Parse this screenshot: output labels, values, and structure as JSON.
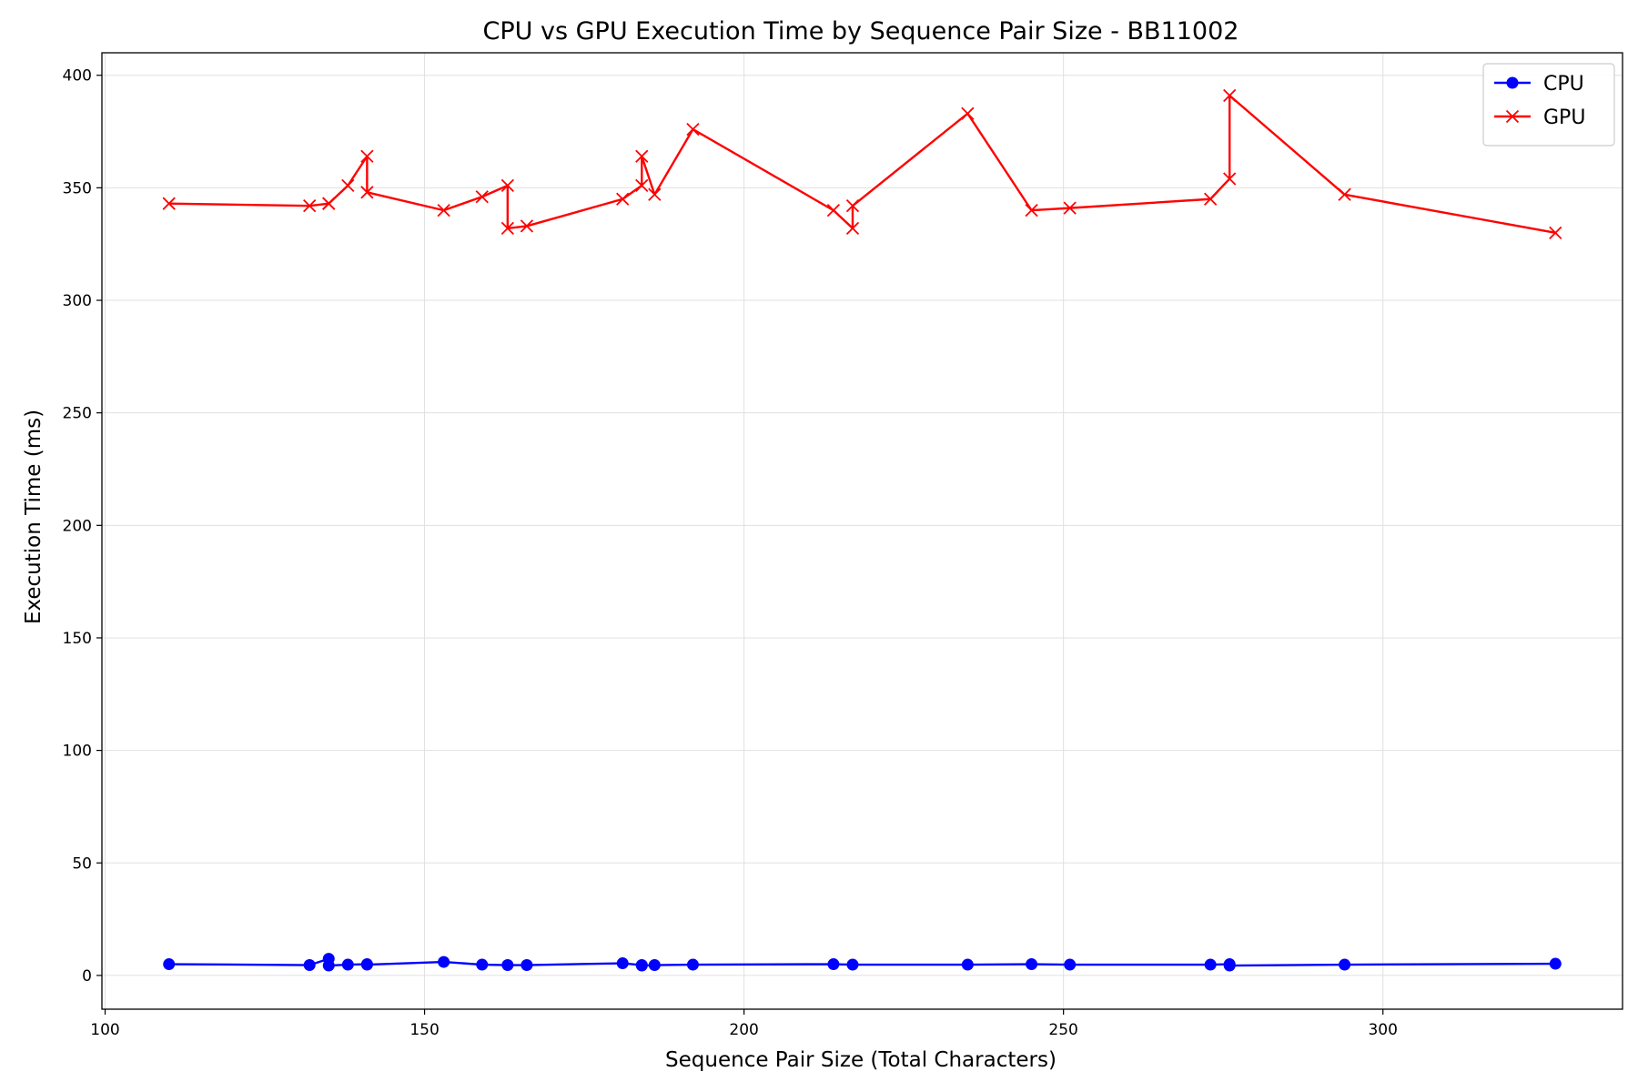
{
  "chart_data": {
    "type": "line",
    "title": "CPU vs GPU Execution Time by Sequence Pair Size - BB11002",
    "xlabel": "Sequence Pair Size (Total Characters)",
    "ylabel": "Execution Time (ms)",
    "xlim": [
      99.5,
      337.5
    ],
    "ylim": [
      -15,
      410
    ],
    "xticks": [
      100,
      150,
      200,
      250,
      300
    ],
    "yticks": [
      0,
      50,
      100,
      150,
      200,
      250,
      300,
      350,
      400
    ],
    "grid": true,
    "legend_position": "top-right",
    "series": [
      {
        "name": "CPU",
        "color": "#0000ff",
        "marker": "circle",
        "points": [
          [
            110,
            5.0
          ],
          [
            132,
            4.6
          ],
          [
            135,
            7.4
          ],
          [
            135,
            4.4
          ],
          [
            138,
            4.8
          ],
          [
            141,
            5.0
          ],
          [
            141,
            4.8
          ],
          [
            153,
            6.0
          ],
          [
            159,
            4.8
          ],
          [
            163,
            4.6
          ],
          [
            166,
            4.6
          ],
          [
            181,
            5.4
          ],
          [
            184,
            4.6
          ],
          [
            184,
            4.4
          ],
          [
            186,
            4.6
          ],
          [
            192,
            4.8
          ],
          [
            214,
            5.0
          ],
          [
            217,
            4.8
          ],
          [
            235,
            4.8
          ],
          [
            245,
            5.0
          ],
          [
            251,
            4.8
          ],
          [
            273,
            4.8
          ],
          [
            276,
            5.0
          ],
          [
            276,
            4.4
          ],
          [
            294,
            4.8
          ],
          [
            327,
            5.2
          ]
        ]
      },
      {
        "name": "GPU",
        "color": "#ff0000",
        "marker": "x",
        "points": [
          [
            110,
            343
          ],
          [
            132,
            342
          ],
          [
            135,
            343
          ],
          [
            135,
            343
          ],
          [
            138,
            351
          ],
          [
            141,
            364
          ],
          [
            141,
            348
          ],
          [
            153,
            340
          ],
          [
            159,
            346
          ],
          [
            163,
            351
          ],
          [
            163,
            332
          ],
          [
            166,
            333
          ],
          [
            181,
            345
          ],
          [
            184,
            351
          ],
          [
            184,
            364
          ],
          [
            186,
            347
          ],
          [
            192,
            376
          ],
          [
            214,
            340
          ],
          [
            217,
            332
          ],
          [
            217,
            342
          ],
          [
            235,
            383
          ],
          [
            245,
            340
          ],
          [
            251,
            341
          ],
          [
            273,
            345
          ],
          [
            276,
            354
          ],
          [
            276,
            391
          ],
          [
            294,
            347
          ],
          [
            327,
            330
          ]
        ]
      }
    ]
  }
}
